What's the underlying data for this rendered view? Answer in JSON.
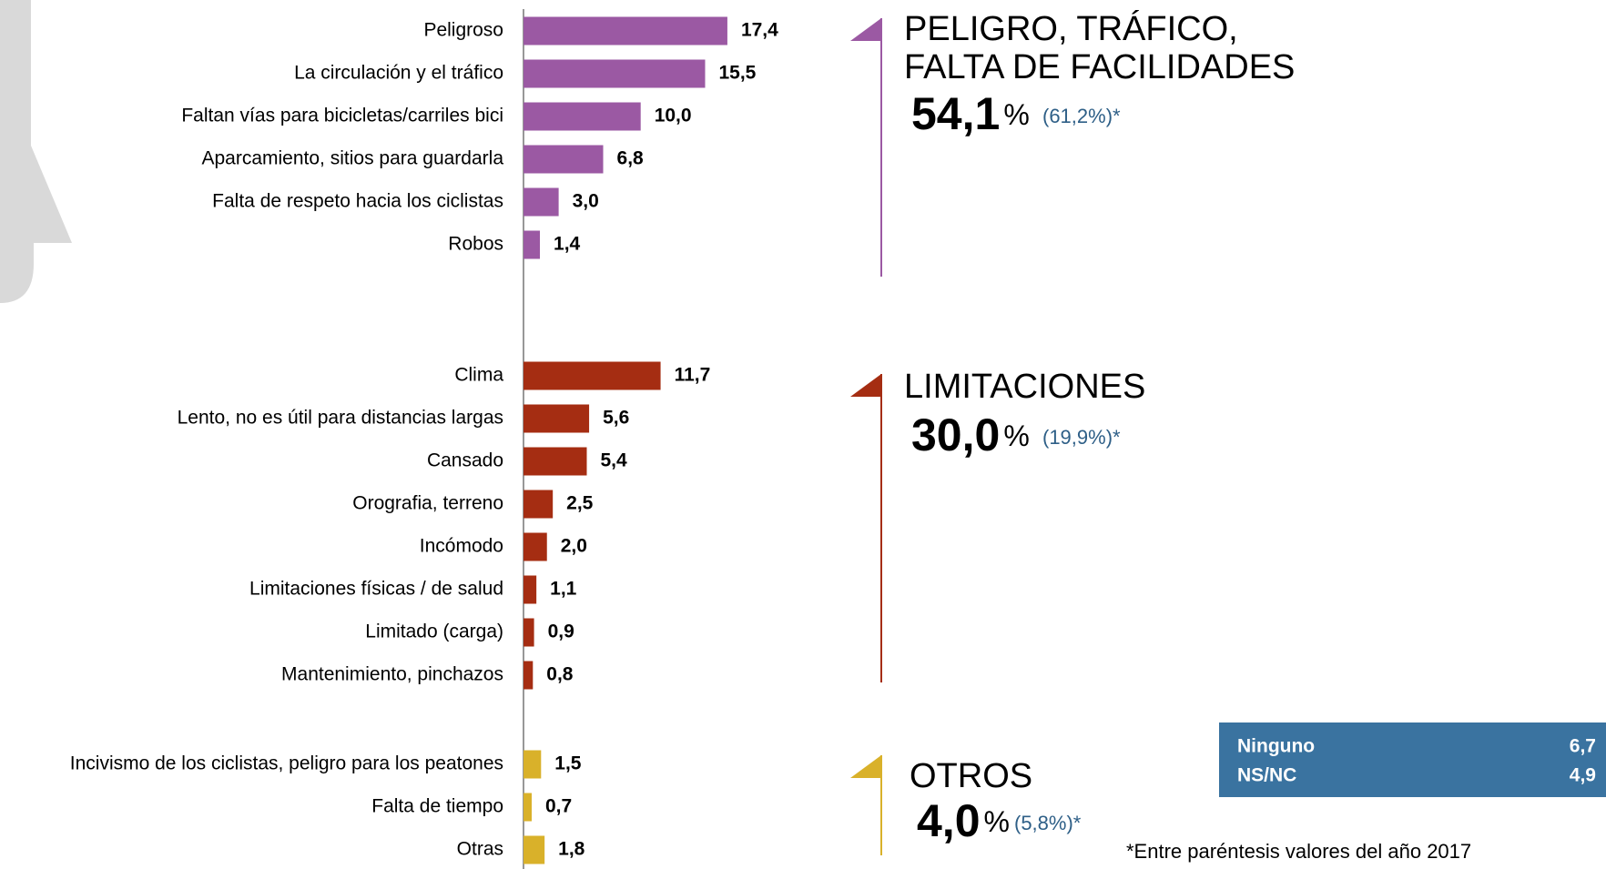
{
  "chart_data": {
    "type": "bar",
    "orientation": "horizontal",
    "groups": [
      {
        "title": [
          "PELIGRO, TRÁFICO,",
          "FALTA DE FACILIDADES"
        ],
        "total": 54.1,
        "total_label": "54,1",
        "total_unit": "%",
        "previous": "(61,2%)*",
        "color": "#9b59a3",
        "categories": [
          "Peligroso",
          "La circulación y el tráfico",
          "Faltan vías para bicicletas/carriles bici",
          "Aparcamiento, sitios para guardarla",
          "Falta de respeto hacia los ciclistas",
          "Robos"
        ],
        "values": [
          17.4,
          15.5,
          10.0,
          6.8,
          3.0,
          1.4
        ],
        "value_labels": [
          "17,4",
          "15,5",
          "10,0",
          "6,8",
          "3,0",
          "1,4"
        ]
      },
      {
        "title": [
          "LIMITACIONES"
        ],
        "total": 30.0,
        "total_label": "30,0",
        "total_unit": "%",
        "previous": "(19,9%)*",
        "color": "#a52d12",
        "categories": [
          "Clima",
          "Lento, no es útil para distancias largas",
          "Cansado",
          "Orografia, terreno",
          "Incómodo",
          "Limitaciones físicas / de salud",
          "Limitado (carga)",
          "Mantenimiento, pinchazos"
        ],
        "values": [
          11.7,
          5.6,
          5.4,
          2.5,
          2.0,
          1.1,
          0.9,
          0.8
        ],
        "value_labels": [
          "11,7",
          "5,6",
          "5,4",
          "2,5",
          "2,0",
          "1,1",
          "0,9",
          "0,8"
        ]
      },
      {
        "title": [
          "OTROS"
        ],
        "total": 4.0,
        "total_label": "4,0",
        "total_unit": "%",
        "previous": "(5,8%)*",
        "color": "#d9b12a",
        "categories": [
          "Incivismo de los ciclistas, peligro para los peatones",
          "Falta de tiempo",
          "Otras"
        ],
        "values": [
          1.5,
          0.7,
          1.8
        ],
        "value_labels": [
          "1,5",
          "0,7",
          "1,8"
        ]
      }
    ],
    "others": {
      "color": "#3a73a0",
      "rows": [
        {
          "label": "Ninguno",
          "value": 6.7,
          "value_label": "6,7"
        },
        {
          "label": "NS/NC",
          "value": 4.9,
          "value_label": "4,9"
        }
      ]
    },
    "footnote": "*Entre paréntesis valores del año 2017"
  }
}
